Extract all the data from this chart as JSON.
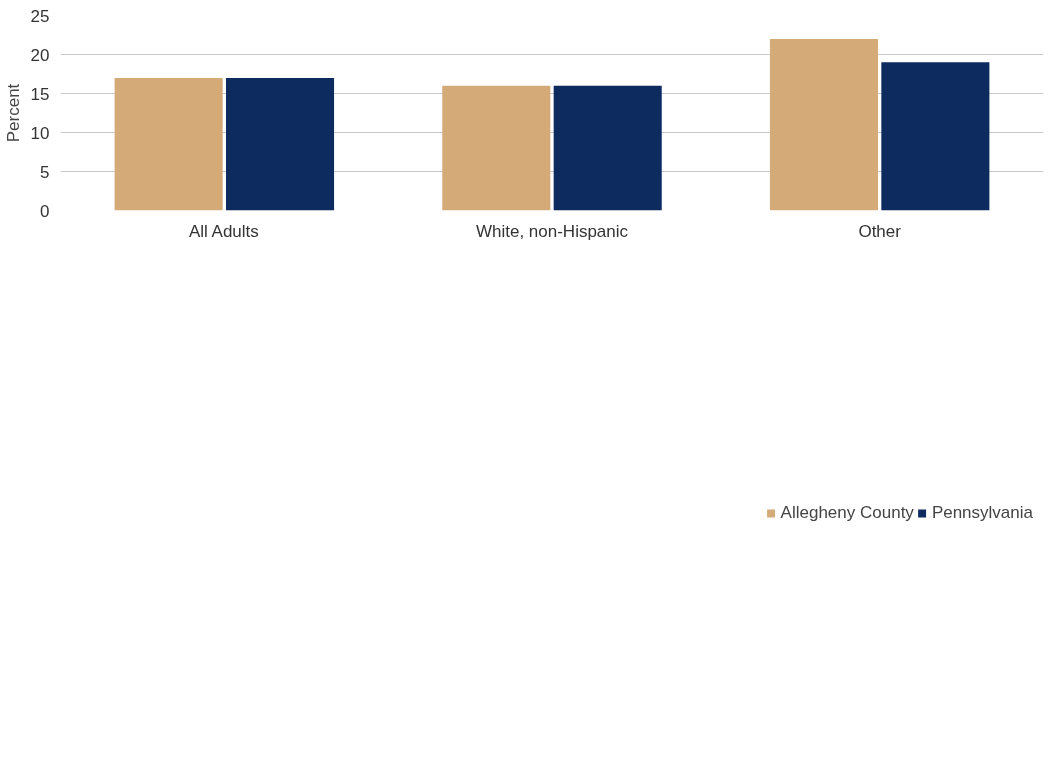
{
  "chart_data": {
    "type": "bar",
    "ylabel": "Percent",
    "categories": [
      "All Adults",
      "White, non-Hispanic",
      "Other"
    ],
    "series": [
      {
        "name": "Allegheny County",
        "color": "#d4aa78",
        "values": [
          17,
          16,
          22
        ]
      },
      {
        "name": "Pennsylvania",
        "color": "#0d2b5e",
        "values": [
          17,
          16,
          19
        ]
      }
    ],
    "ylim": [
      0,
      25
    ],
    "yticks": [
      0,
      5,
      10,
      15,
      20,
      25
    ],
    "grid": "y",
    "legend": "bottom"
  }
}
